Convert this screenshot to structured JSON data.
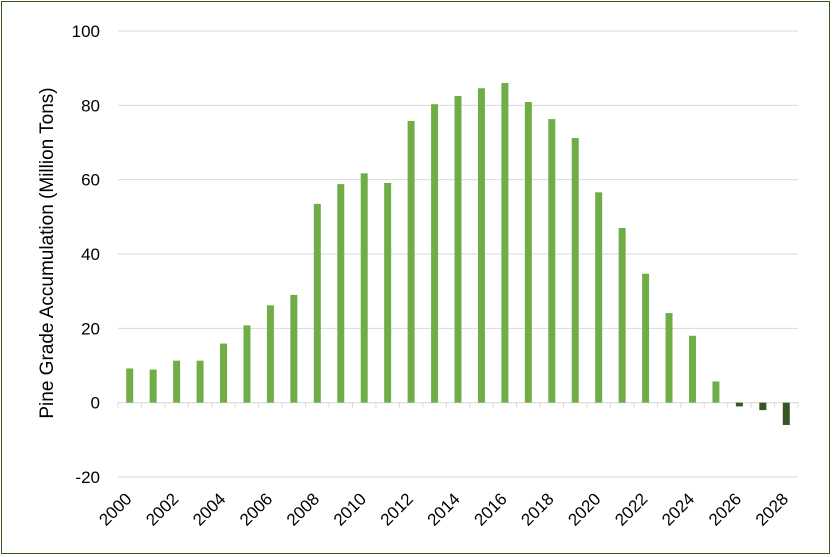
{
  "chart_data": {
    "type": "bar",
    "title": "",
    "xlabel": "",
    "ylabel": "Pine Grade Accumulation (Million Tons)",
    "ylim": [
      -20,
      100
    ],
    "yticks": [
      100,
      80,
      60,
      40,
      20,
      0,
      -20
    ],
    "grid": true,
    "legend": "none",
    "colors": {
      "positive": "#70AD47",
      "negative": "#375623",
      "grid": "#D9D9D9",
      "frame": "#385723"
    },
    "categories": [
      "2000",
      "2001",
      "2002",
      "2003",
      "2004",
      "2005",
      "2006",
      "2007",
      "2008",
      "2009",
      "2010",
      "2011",
      "2012",
      "2013",
      "2014",
      "2015",
      "2016",
      "2017",
      "2018",
      "2019",
      "2020",
      "2021",
      "2022",
      "2023",
      "2024",
      "2025",
      "2026",
      "2027",
      "2028"
    ],
    "x_tick_labels": [
      "2000",
      "2002",
      "2004",
      "2006",
      "2008",
      "2010",
      "2012",
      "2014",
      "2016",
      "2018",
      "2020",
      "2022",
      "2024",
      "2026",
      "2028"
    ],
    "values": [
      9.2,
      8.9,
      11.3,
      11.3,
      15.9,
      20.8,
      26.2,
      29.0,
      53.5,
      58.8,
      61.7,
      59.1,
      75.8,
      80.3,
      82.5,
      84.6,
      86.0,
      80.9,
      76.3,
      71.2,
      56.6,
      47.0,
      34.7,
      24.1,
      18.0,
      5.7,
      -1.0,
      -2.0,
      -6.0
    ]
  }
}
